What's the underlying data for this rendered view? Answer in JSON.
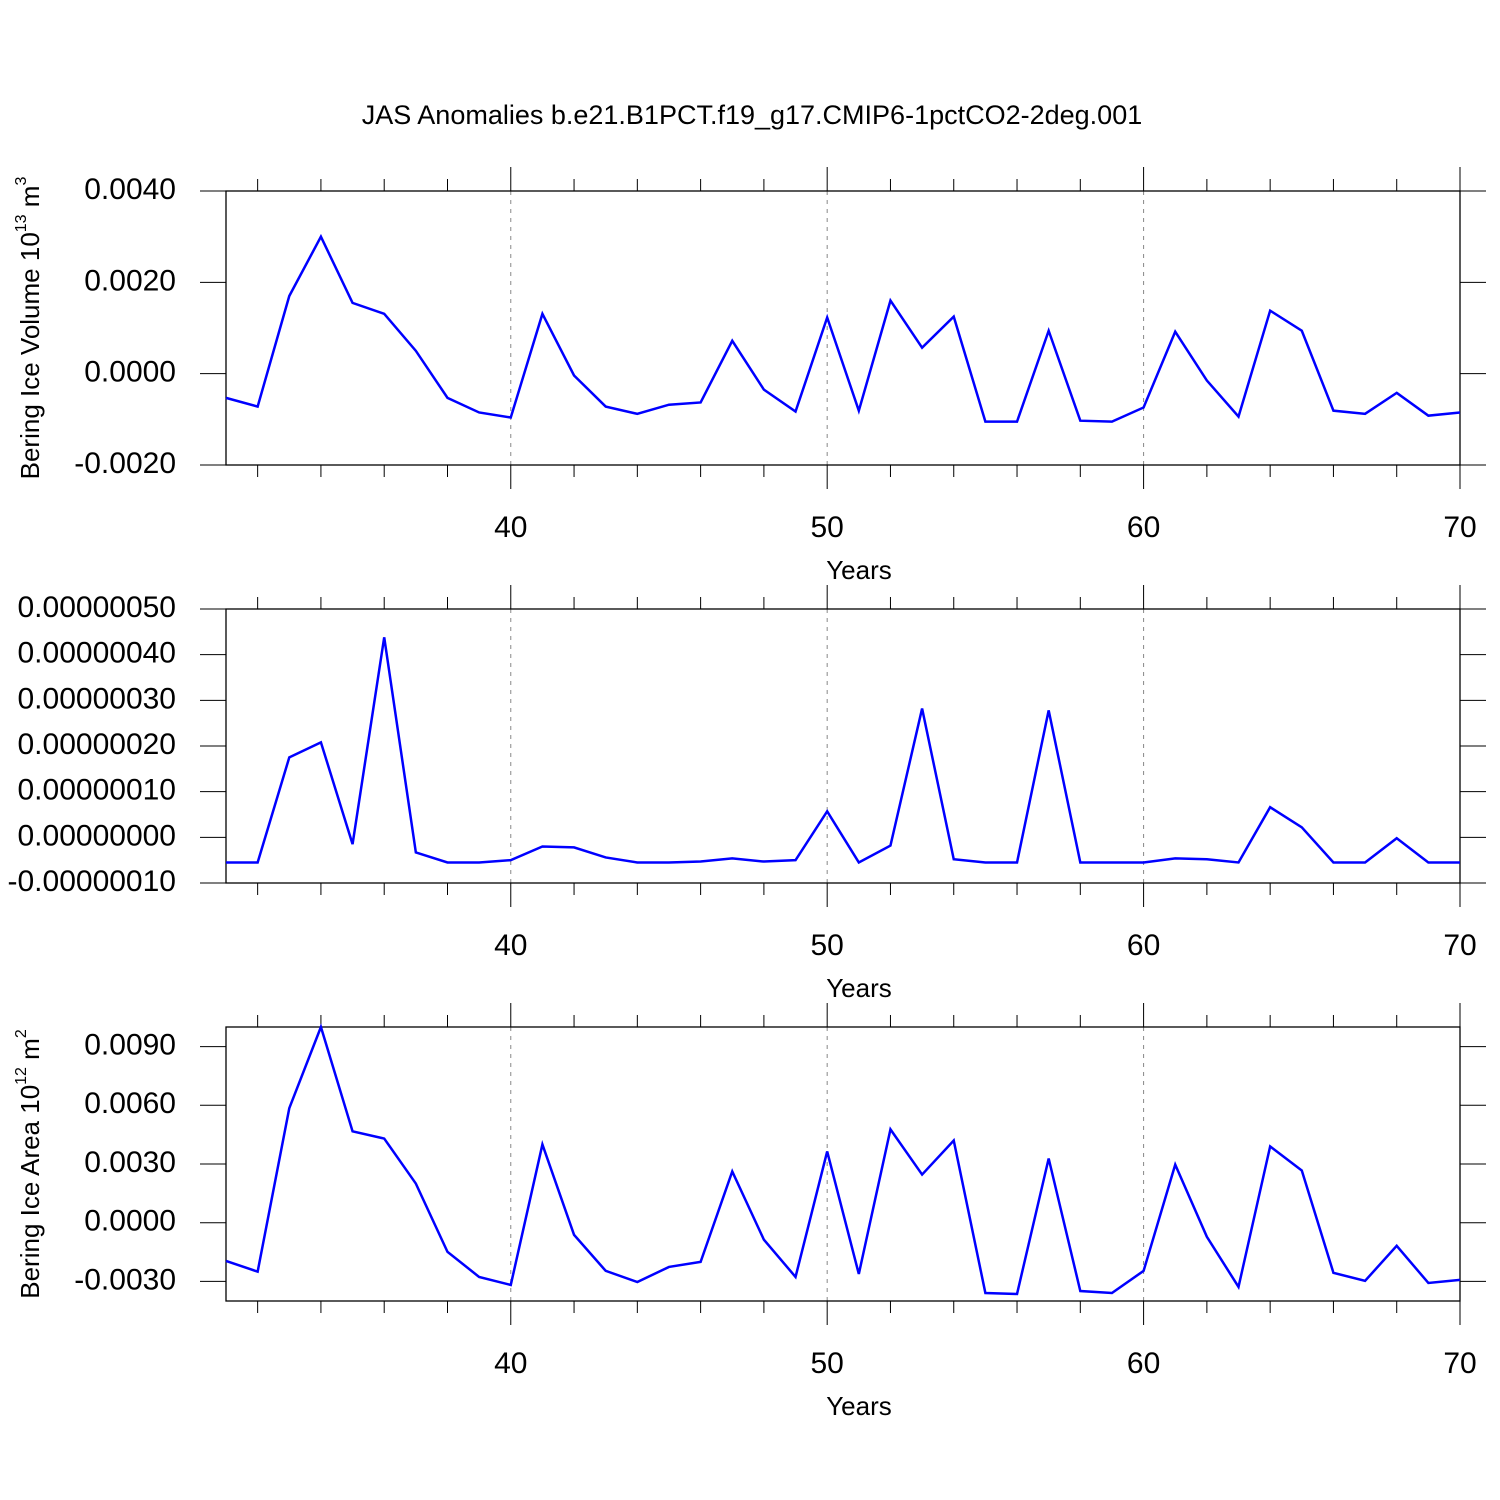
{
  "chart_data": [
    {
      "type": "line",
      "title": "JAS Anomalies b.e21.B1PCT.f19_g17.CMIP6-1pctCO2-2deg.001",
      "ylabel": {
        "text": "Bering Ice Volume 10",
        "exponent": "13",
        "unit": " m",
        "unit_exponent": "3"
      },
      "xlabel": "Years",
      "x": [
        31,
        32,
        33,
        34,
        35,
        36,
        37,
        38,
        39,
        40,
        41,
        42,
        43,
        44,
        45,
        46,
        47,
        48,
        49,
        50,
        51,
        52,
        53,
        54,
        55,
        56,
        57,
        58,
        59,
        60,
        61,
        62,
        63,
        64,
        65,
        66,
        67,
        68,
        69,
        70
      ],
      "values": [
        -0.00053,
        -0.00072,
        0.0017,
        0.003,
        0.00155,
        0.00131,
        0.0005,
        -0.00053,
        -0.00085,
        -0.00096,
        0.00131,
        -4e-05,
        -0.00072,
        -0.00088,
        -0.00068,
        -0.00063,
        0.00072,
        -0.00035,
        -0.00083,
        0.00123,
        -0.00081,
        0.0016,
        0.00057,
        0.00125,
        -0.00105,
        -0.00105,
        0.00094,
        -0.00103,
        -0.00105,
        -0.00074,
        0.00092,
        -0.00015,
        -0.00094,
        0.00138,
        0.00094,
        -0.00081,
        -0.00088,
        -0.00042,
        -0.00092,
        -0.00085
      ],
      "color": "#0000ff",
      "xlim": [
        31,
        70
      ],
      "xticks": [
        40,
        50,
        60,
        70
      ],
      "xminorticks": [
        32,
        34,
        36,
        38,
        42,
        44,
        46,
        48,
        52,
        54,
        56,
        58,
        62,
        64,
        66,
        68
      ],
      "ylim": [
        -0.002,
        0.004
      ],
      "yticks": [
        {
          "value": -0.002,
          "label": "-0.0020"
        },
        {
          "value": 0,
          "label": "0.0000"
        },
        {
          "value": 0.002,
          "label": "0.0020"
        },
        {
          "value": 0.004,
          "label": "0.0040"
        }
      ],
      "grid": true
    },
    {
      "type": "line",
      "xlabel": "Years",
      "x": [
        31,
        32,
        33,
        34,
        35,
        36,
        37,
        38,
        39,
        40,
        41,
        42,
        43,
        44,
        45,
        46,
        47,
        48,
        49,
        50,
        51,
        52,
        53,
        54,
        55,
        56,
        57,
        58,
        59,
        60,
        61,
        62,
        63,
        64,
        65,
        66,
        67,
        68,
        69,
        70
      ],
      "values": [
        -5.5e-08,
        -5.5e-08,
        1.75e-07,
        2.08e-07,
        -1.5e-08,
        4.38e-07,
        -3.3e-08,
        -5.5e-08,
        -5.5e-08,
        -5e-08,
        -2e-08,
        -2.2e-08,
        -4.4e-08,
        -5.5e-08,
        -5.5e-08,
        -5.3e-08,
        -4.6e-08,
        -5.3e-08,
        -5e-08,
        5.7e-08,
        -5.5e-08,
        -1.8e-08,
        2.82e-07,
        -4.8e-08,
        -5.5e-08,
        -5.5e-08,
        2.78e-07,
        -5.5e-08,
        -5.5e-08,
        -5.5e-08,
        -4.6e-08,
        -4.8e-08,
        -5.5e-08,
        6.6e-08,
        2.2e-08,
        -5.5e-08,
        -5.5e-08,
        -2e-09,
        -5.5e-08,
        -5.5e-08
      ],
      "color": "#0000ff",
      "xlim": [
        31,
        70
      ],
      "xticks": [
        40,
        50,
        60,
        70
      ],
      "xminorticks": [
        32,
        34,
        36,
        38,
        42,
        44,
        46,
        48,
        52,
        54,
        56,
        58,
        62,
        64,
        66,
        68
      ],
      "ylim": [
        -1e-07,
        5e-07
      ],
      "yticks": [
        {
          "value": -1e-07,
          "label": "-0.00000010"
        },
        {
          "value": 0,
          "label": "0.00000000"
        },
        {
          "value": 1e-07,
          "label": "0.00000010"
        },
        {
          "value": 2e-07,
          "label": "0.00000020"
        },
        {
          "value": 3e-07,
          "label": "0.00000030"
        },
        {
          "value": 4e-07,
          "label": "0.00000040"
        },
        {
          "value": 5e-07,
          "label": "0.00000050"
        }
      ],
      "grid": true
    },
    {
      "type": "line",
      "ylabel": {
        "text": "Bering Ice Area 10",
        "exponent": "12",
        "unit": " m",
        "unit_exponent": "2"
      },
      "xlabel": "Years",
      "x": [
        31,
        32,
        33,
        34,
        35,
        36,
        37,
        38,
        39,
        40,
        41,
        42,
        43,
        44,
        45,
        46,
        47,
        48,
        49,
        50,
        51,
        52,
        53,
        54,
        55,
        56,
        57,
        58,
        59,
        60,
        61,
        62,
        63,
        64,
        65,
        66,
        67,
        68,
        69,
        70
      ],
      "values": [
        -0.00195,
        -0.0025,
        0.00585,
        0.01,
        0.00467,
        0.0043,
        0.002,
        -0.00149,
        -0.00277,
        -0.00318,
        0.004,
        -0.00062,
        -0.00246,
        -0.00303,
        -0.00226,
        -0.002,
        0.00262,
        -0.00087,
        -0.00277,
        0.00364,
        -0.00262,
        0.00477,
        0.00246,
        0.0042,
        -0.00359,
        -0.00364,
        0.00328,
        -0.00349,
        -0.00359,
        -0.00246,
        0.00297,
        -0.00072,
        -0.00328,
        0.0039,
        0.00267,
        -0.00256,
        -0.00297,
        -0.00118,
        -0.00308,
        -0.00292
      ],
      "color": "#0000ff",
      "xlim": [
        31,
        70
      ],
      "xticks": [
        40,
        50,
        60,
        70
      ],
      "xminorticks": [
        32,
        34,
        36,
        38,
        42,
        44,
        46,
        48,
        52,
        54,
        56,
        58,
        62,
        64,
        66,
        68
      ],
      "ylim": [
        -0.004,
        0.01
      ],
      "yticks": [
        {
          "value": -0.003,
          "label": "-0.0030"
        },
        {
          "value": 0,
          "label": "0.0000"
        },
        {
          "value": 0.003,
          "label": "0.0030"
        },
        {
          "value": 0.006,
          "label": "0.0060"
        },
        {
          "value": 0.009,
          "label": "0.0090"
        }
      ],
      "grid": true
    }
  ]
}
